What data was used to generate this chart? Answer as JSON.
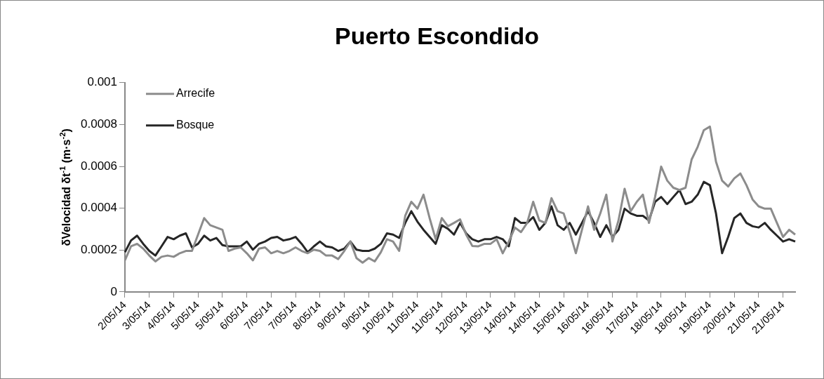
{
  "chart_data": {
    "type": "line",
    "title": "Puerto Escondido",
    "ylabel": "δVelocidad δt$^{-1}$ (m·s$^{-2}$)",
    "categories": [
      "2/05/14",
      null,
      null,
      null,
      "3/05/14",
      null,
      null,
      null,
      "4/05/14",
      null,
      null,
      null,
      "5/05/14",
      null,
      null,
      null,
      "5/05/14",
      null,
      null,
      null,
      "6/05/14",
      null,
      null,
      null,
      "7/05/14",
      null,
      null,
      null,
      "7/05/14",
      null,
      null,
      null,
      "8/05/14",
      null,
      null,
      null,
      "9/05/14",
      null,
      null,
      null,
      "9/05/14",
      null,
      null,
      null,
      "10/05/14",
      null,
      null,
      null,
      "11/05/14",
      null,
      null,
      null,
      "11/05/14",
      null,
      null,
      null,
      "12/05/14",
      null,
      null,
      null,
      "13/05/14",
      null,
      null,
      null,
      "14/05/14",
      null,
      null,
      null,
      "14/05/14",
      null,
      null,
      null,
      "15/05/14",
      null,
      null,
      null,
      "16/05/14",
      null,
      null,
      null,
      "16/05/14",
      null,
      null,
      null,
      "17/05/14",
      null,
      null,
      null,
      "18/05/14",
      null,
      null,
      null,
      "18/05/14",
      null,
      null,
      null,
      "19/05/14",
      null,
      null,
      null,
      "20/05/14",
      null,
      null,
      null,
      "21/05/14",
      null,
      null,
      null,
      "21/05/14",
      null,
      null
    ],
    "series": [
      {
        "name": "Arrecife",
        "color": "#8c8c8c",
        "values": [
          0.000151,
          0.000218,
          0.00023,
          0.000207,
          0.000174,
          0.000146,
          0.000168,
          0.000174,
          0.000168,
          0.000185,
          0.000196,
          0.000196,
          0.000274,
          0.000353,
          0.000319,
          0.000308,
          0.000297,
          0.000196,
          0.000207,
          0.000213,
          0.000185,
          0.000151,
          0.000207,
          0.000213,
          0.000185,
          0.000196,
          0.000185,
          0.000196,
          0.000213,
          0.000196,
          0.000185,
          0.000202,
          0.000196,
          0.000174,
          0.000174,
          0.000157,
          0.000196,
          0.000241,
          0.000162,
          0.00014,
          0.000162,
          0.000146,
          0.00019,
          0.000252,
          0.000241,
          0.000196,
          0.000364,
          0.000431,
          0.000398,
          0.000465,
          0.000353,
          0.000252,
          0.000353,
          0.000314,
          0.00033,
          0.000347,
          0.000274,
          0.00022,
          0.000218,
          0.00023,
          0.00023,
          0.000252,
          0.000185,
          0.000241,
          0.000308,
          0.000286,
          0.00033,
          0.000431,
          0.000342,
          0.00033,
          0.000448,
          0.000386,
          0.000375,
          0.000286,
          0.000185,
          0.000297,
          0.000409,
          0.000297,
          0.000375,
          0.000465,
          0.000241,
          0.000342,
          0.000493,
          0.000386,
          0.000431,
          0.000465,
          0.00033,
          0.000454,
          0.000599,
          0.000532,
          0.000498,
          0.000487,
          0.000498,
          0.000633,
          0.000694,
          0.000773,
          0.00079,
          0.000622,
          0.000532,
          0.000504,
          0.000543,
          0.000566,
          0.00051,
          0.000442,
          0.000409,
          0.000398,
          0.000398,
          0.00033,
          0.000263,
          0.000297,
          0.000274
        ]
      },
      {
        "name": "Bosque",
        "color": "#262626",
        "values": [
          0.00019,
          0.000246,
          0.000269,
          0.00023,
          0.000196,
          0.000174,
          0.000218,
          0.000263,
          0.000252,
          0.000269,
          0.00028,
          0.000213,
          0.00023,
          0.000269,
          0.000246,
          0.000258,
          0.000224,
          0.000218,
          0.000218,
          0.000218,
          0.000241,
          0.000202,
          0.00023,
          0.000241,
          0.000258,
          0.000263,
          0.000246,
          0.000252,
          0.000263,
          0.00023,
          0.00019,
          0.000218,
          0.000241,
          0.000218,
          0.000213,
          0.000196,
          0.000207,
          0.000241,
          0.000202,
          0.000196,
          0.000196,
          0.000207,
          0.00023,
          0.00028,
          0.000274,
          0.000258,
          0.00033,
          0.000386,
          0.000336,
          0.000297,
          0.000263,
          0.00023,
          0.000319,
          0.000302,
          0.000274,
          0.00033,
          0.00028,
          0.000252,
          0.000241,
          0.000252,
          0.000252,
          0.000263,
          0.000252,
          0.000218,
          0.000353,
          0.00033,
          0.00033,
          0.000358,
          0.000297,
          0.00033,
          0.000409,
          0.000319,
          0.000297,
          0.00033,
          0.000274,
          0.00033,
          0.000386,
          0.00033,
          0.000263,
          0.000319,
          0.000263,
          0.000297,
          0.000398,
          0.000375,
          0.000364,
          0.000364,
          0.000342,
          0.000431,
          0.000454,
          0.00042,
          0.000454,
          0.000487,
          0.00042,
          0.000431,
          0.000465,
          0.000526,
          0.00051,
          0.000375,
          0.000185,
          0.000263,
          0.000353,
          0.000375,
          0.00033,
          0.000314,
          0.000308,
          0.00033,
          0.000297,
          0.000269,
          0.000241,
          0.000252,
          0.000241
        ]
      }
    ],
    "ylim": [
      0,
      0.001
    ],
    "yticks": [
      0,
      0.0002,
      0.0004,
      0.0006,
      0.0008,
      0.001
    ],
    "grid": false,
    "legend": "top left",
    "marker": "none",
    "line_style": "solid"
  }
}
